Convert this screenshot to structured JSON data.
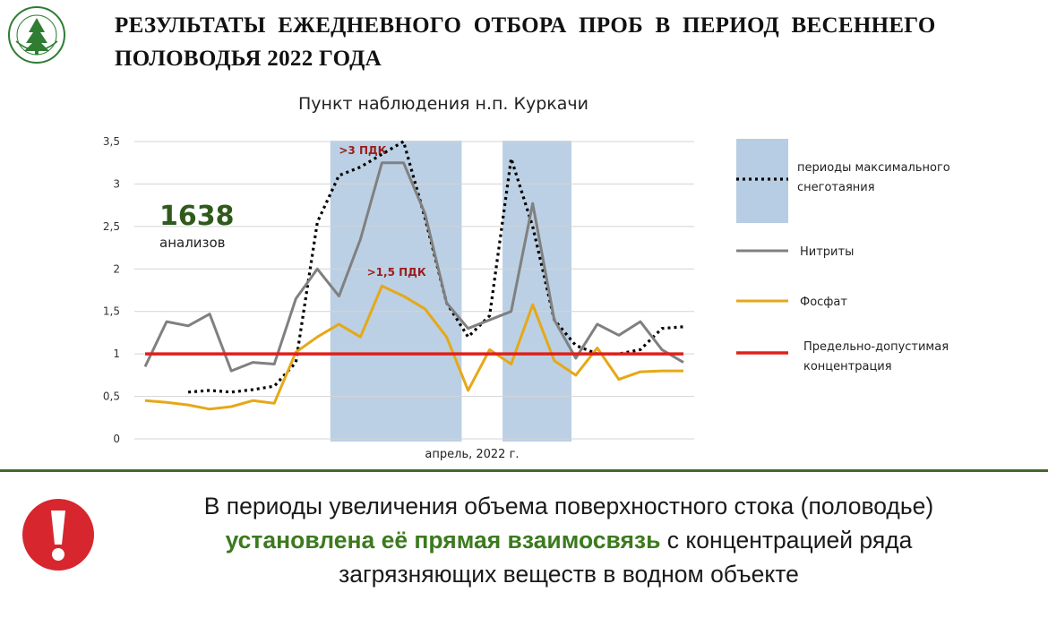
{
  "header": {
    "title_line1": "РЕЗУЛЬТАТЫ ЕЖЕДНЕВНОГО ОТБОРА ПРОБ В ПЕРИОД ВЕСЕННЕГО",
    "title_line2": "ПОЛОВОДЬЯ 2022 ГОДА"
  },
  "logo": {
    "icon": "tree-emblem-icon",
    "color": "#2e7d32"
  },
  "chart_data": {
    "type": "line",
    "title": "Пункт наблюдения н.п. Куркачи",
    "xlabel": "апрель, 2022 г.",
    "ylabel": "",
    "ylim": [
      0,
      3.5
    ],
    "yticks": [
      "0",
      "0,5",
      "1",
      "1,5",
      "2",
      "2,5",
      "3",
      "3,5"
    ],
    "grid": true,
    "legend_position": "right",
    "x": [
      1,
      2,
      3,
      4,
      5,
      6,
      7,
      8,
      9,
      10,
      11,
      12,
      13,
      14,
      15,
      16,
      17,
      18,
      19,
      20,
      21,
      22,
      23,
      24,
      25,
      26
    ],
    "series": [
      {
        "name": "периоды максимального снеготаяния",
        "color": "#000000",
        "style": "dotted",
        "values": [
          null,
          null,
          0.55,
          0.57,
          0.55,
          0.58,
          0.62,
          0.9,
          2.55,
          3.1,
          3.2,
          3.35,
          3.5,
          2.6,
          1.6,
          1.2,
          1.45,
          3.3,
          2.5,
          1.4,
          1.1,
          1.0,
          1.0,
          1.05,
          1.3,
          1.32
        ]
      },
      {
        "name": "Нитриты",
        "color": "#808080",
        "style": "solid",
        "values": [
          0.85,
          1.38,
          1.33,
          1.47,
          0.8,
          0.9,
          0.88,
          1.65,
          2.0,
          1.68,
          2.35,
          3.25,
          3.25,
          2.65,
          1.6,
          1.3,
          1.4,
          1.5,
          2.77,
          1.4,
          0.95,
          1.35,
          1.22,
          1.38,
          1.05,
          0.9
        ]
      },
      {
        "name": "Фосфат",
        "color": "#e6a817",
        "style": "solid",
        "values": [
          0.45,
          0.43,
          0.4,
          0.35,
          0.38,
          0.45,
          0.42,
          1.02,
          1.2,
          1.35,
          1.2,
          1.8,
          1.68,
          1.53,
          1.2,
          0.57,
          1.05,
          0.88,
          1.58,
          0.92,
          0.75,
          1.07,
          0.7,
          0.79,
          0.8,
          0.8
        ]
      },
      {
        "name": "Предельно-допустимая концентрация",
        "color": "#e0201a",
        "style": "solid",
        "values": [
          1,
          1,
          1,
          1,
          1,
          1,
          1,
          1,
          1,
          1,
          1,
          1,
          1,
          1,
          1,
          1,
          1,
          1,
          1,
          1,
          1,
          1,
          1,
          1,
          1,
          1
        ]
      }
    ],
    "shaded_periods": [
      {
        "x_range": [
          9.6,
          15.7
        ],
        "color": "#b7cde3"
      },
      {
        "x_range": [
          17.6,
          20.8
        ],
        "color": "#b7cde3"
      }
    ],
    "annotations": [
      {
        "text": ">3 ПДК",
        "color": "#9b1c1c",
        "x": 10.0,
        "y": 3.35
      },
      {
        "text": ">1,5 ПДК",
        "color": "#9b1c1c",
        "x": 11.3,
        "y": 1.92
      }
    ],
    "callout": {
      "value": "1638",
      "label": "анализов",
      "value_color": "#2f5a1c"
    },
    "legend": [
      {
        "label": "периоды максимального снеготаяния",
        "marker": "dotted-line-on-blue",
        "band_color": "#b7cde3"
      },
      {
        "label": "Нитриты",
        "marker": "line",
        "color": "#808080"
      },
      {
        "label": "Фосфат",
        "marker": "line",
        "color": "#e6a817"
      },
      {
        "label": "Предельно-допустимая концентрация",
        "marker": "line",
        "color": "#e0201a"
      }
    ]
  },
  "conclusion": {
    "line1": "В периоды увеличения объема поверхностного стока (половодье)",
    "line2_highlight": "установлена её прямая взаимосвязь",
    "line2_rest": " с концентрацией ряда",
    "line3": "загрязняющих веществ в водном объекте",
    "highlight_color": "#3c7a1e",
    "icon": "exclamation-warning-icon",
    "icon_color": "#d7262e"
  }
}
